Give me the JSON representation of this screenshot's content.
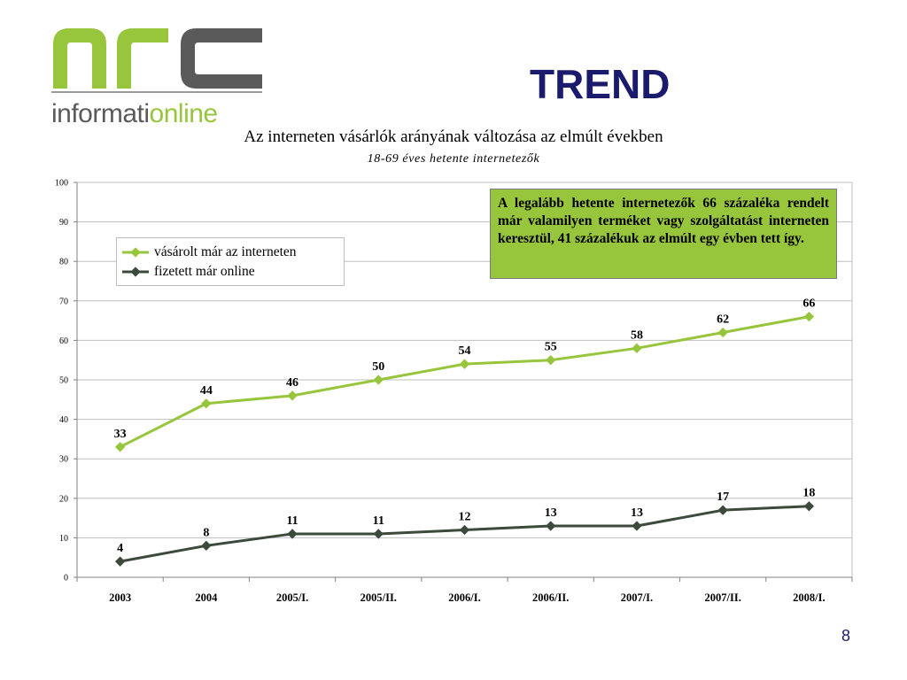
{
  "logo": {
    "text_dark": "informati",
    "text_green": "online"
  },
  "slide": {
    "title": "TREND",
    "page_number": "8"
  },
  "colors": {
    "green": "#97c53c",
    "dark": "#3c4a3c",
    "title_blue": "#1b1b6e"
  },
  "callout": {
    "text": "A legalább hetente internetezők 66 százaléka rendelt már valamilyen terméket vagy szolgáltatást interneten keresztül, 41 százalékuk az elmúlt egy évben tett így."
  },
  "chart_data": {
    "type": "line",
    "title": "Az interneten vásárlók arányának változása az elmúlt években",
    "subtitle": "18-69 éves hetente internetezők",
    "categories": [
      "2003",
      "2004",
      "2005/I.",
      "2005/II.",
      "2006/I.",
      "2006/II.",
      "2007/I.",
      "2007/II.",
      "2008/I."
    ],
    "series": [
      {
        "name": "vásárolt már az interneten",
        "values": [
          33,
          44,
          46,
          50,
          54,
          55,
          58,
          62,
          66
        ],
        "color": "#97c53c"
      },
      {
        "name": "fizetett már online",
        "values": [
          4,
          8,
          11,
          11,
          12,
          13,
          13,
          17,
          18
        ],
        "color": "#3c4a3c"
      }
    ],
    "ylim": [
      0,
      100
    ],
    "yticks": [
      0,
      10,
      20,
      30,
      40,
      50,
      60,
      70,
      80,
      90,
      100
    ],
    "grid": true,
    "legend_position": "top-left",
    "xlabel": "",
    "ylabel": ""
  }
}
